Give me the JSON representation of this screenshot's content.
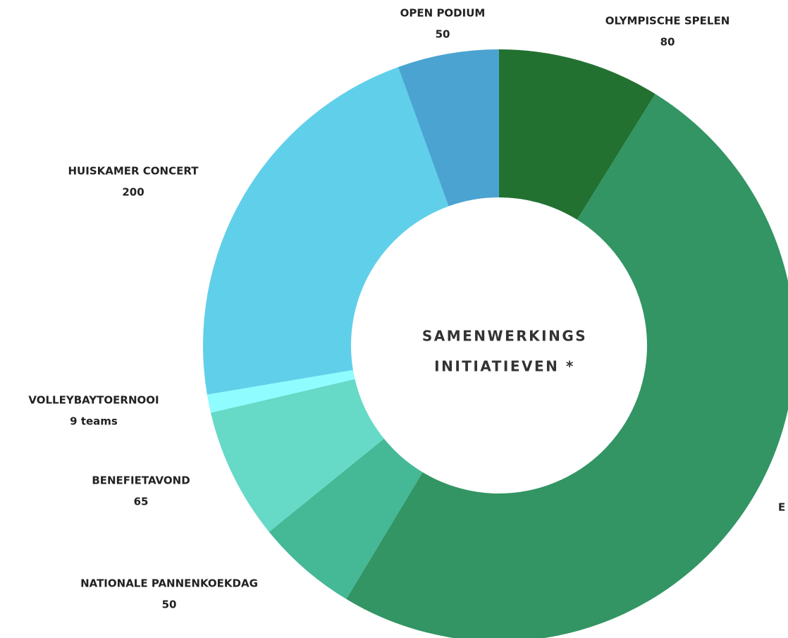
{
  "chart_data": {
    "type": "donut",
    "center_label": [
      "SAMENWERKINGS",
      "INITIATIEVEN *"
    ],
    "categories": [
      "OLYMPISCHE SPELEN",
      "E",
      "NATIONALE PANNENKOEKDAG",
      "BENEFIETAVOND",
      "VOLLEYBAYTOERNOOI",
      "HUISKAMER CONCERT",
      "OPEN PODIUM"
    ],
    "values": [
      80,
      450,
      50,
      65,
      9,
      200,
      50
    ],
    "value_labels": [
      null,
      null,
      null,
      null,
      "9 teams",
      null,
      null
    ],
    "colors": [
      "#237131",
      "#329563",
      "#45b896",
      "#66d9c7",
      "#8ffcff",
      "#60cfea",
      "#4ba3d1"
    ]
  }
}
